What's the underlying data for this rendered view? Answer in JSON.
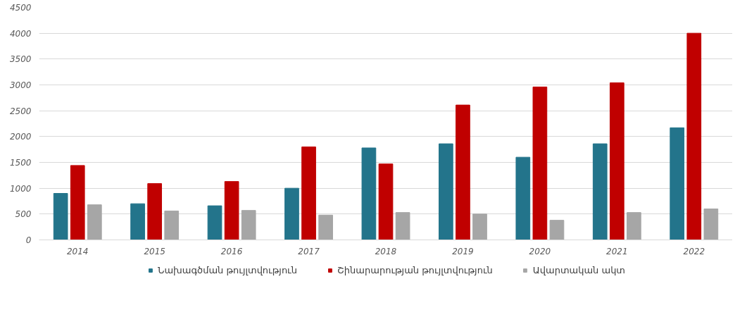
{
  "chart_data": {
    "type": "bar",
    "categories": [
      "2014",
      "2015",
      "2016",
      "2017",
      "2018",
      "2019",
      "2020",
      "2021",
      "2022"
    ],
    "series": [
      {
        "name": "Նախագծման թույլտվություն",
        "color": "#23748b",
        "values": [
          900,
          700,
          660,
          1000,
          1780,
          1860,
          1600,
          1860,
          2170
        ]
      },
      {
        "name": "Շինարարության թույլտվություն",
        "color": "#c00000",
        "values": [
          1440,
          1090,
          1130,
          1800,
          1470,
          2610,
          2960,
          3040,
          4000
        ]
      },
      {
        "name": "Ավարտական ակտ",
        "color": "#a6a6a6",
        "values": [
          680,
          560,
          570,
          480,
          530,
          500,
          380,
          530,
          600
        ]
      }
    ],
    "ylim": [
      0,
      4500
    ],
    "yticks": [
      0,
      500,
      1000,
      1500,
      2000,
      2500,
      3000,
      3500,
      4000,
      4500
    ],
    "grid": "y",
    "legend": "bottom"
  }
}
